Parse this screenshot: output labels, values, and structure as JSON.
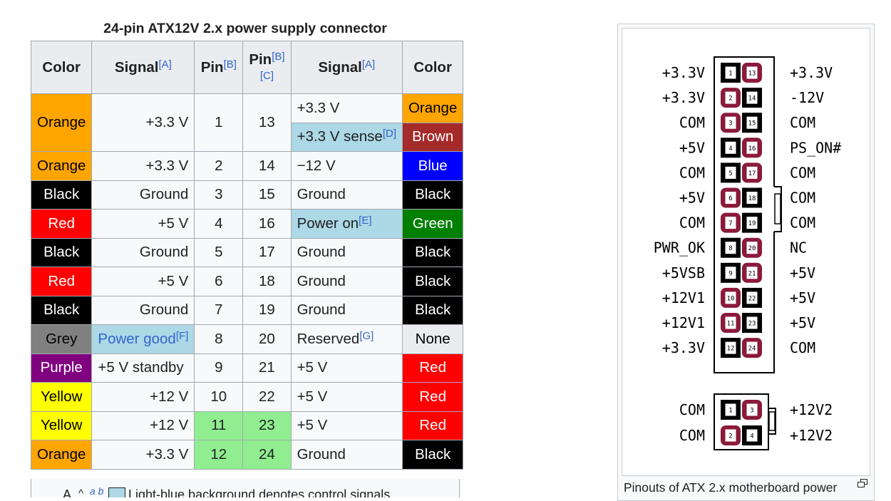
{
  "caption": "24-pin ATX12V 2.x power supply connector",
  "headers": {
    "color": "Color",
    "signal": "Signal",
    "pin": "Pin",
    "ref_a": "[A]",
    "ref_b": "[B]",
    "ref_c": "[C]"
  },
  "rows": [
    {
      "lcolor": "Orange",
      "lsig": "+3.3 V",
      "lpin": "1",
      "rpin": "13",
      "rsig": "+3.3 V",
      "rcolor": "Orange",
      "rsig2": "+3.3 V sense",
      "rsig2_ref": "[D]",
      "rcolor2": "Brown"
    },
    {
      "lcolor": "Orange",
      "lsig": "+3.3 V",
      "lpin": "2",
      "rpin": "14",
      "rsig": "−12 V",
      "rcolor": "Blue"
    },
    {
      "lcolor": "Black",
      "lsig": "Ground",
      "lpin": "3",
      "rpin": "15",
      "rsig": "Ground",
      "rcolor": "Black"
    },
    {
      "lcolor": "Red",
      "lsig": "+5 V",
      "lpin": "4",
      "rpin": "16",
      "rsig": "Power on",
      "rsig_ref": "[E]",
      "rcolor": "Green"
    },
    {
      "lcolor": "Black",
      "lsig": "Ground",
      "lpin": "5",
      "rpin": "17",
      "rsig": "Ground",
      "rcolor": "Black"
    },
    {
      "lcolor": "Red",
      "lsig": "+5 V",
      "lpin": "6",
      "rpin": "18",
      "rsig": "Ground",
      "rcolor": "Black"
    },
    {
      "lcolor": "Black",
      "lsig": "Ground",
      "lpin": "7",
      "rpin": "19",
      "rsig": "Ground",
      "rcolor": "Black"
    },
    {
      "lcolor": "Grey",
      "lsig": "Power good",
      "lsig_ref": "[F]",
      "lpin": "8",
      "rpin": "20",
      "rsig": "Reserved",
      "rsig_ref": "[G]",
      "rcolor": "None"
    },
    {
      "lcolor": "Purple",
      "lsig": "+5 V standby",
      "lpin": "9",
      "rpin": "21",
      "rsig": "+5 V",
      "rcolor": "Red"
    },
    {
      "lcolor": "Yellow",
      "lsig": "+12 V",
      "lpin": "10",
      "rpin": "22",
      "rsig": "+5 V",
      "rcolor": "Red"
    },
    {
      "lcolor": "Yellow",
      "lsig": "+12 V",
      "lpin": "11",
      "rpin": "23",
      "rsig": "+5 V",
      "rcolor": "Red"
    },
    {
      "lcolor": "Orange",
      "lsig": "+3.3 V",
      "lpin": "12",
      "rpin": "24",
      "rsig": "Ground",
      "rcolor": "Black"
    }
  ],
  "footnote": {
    "letter": "A",
    "caret": "^",
    "backlinks": "a b",
    "text": "Light-blue background denotes control signals."
  },
  "colors": {
    "Orange": "#ffa500",
    "Brown": "#a52a2a",
    "Blue": "#0000ff",
    "Black": "#000000",
    "Red": "#ff0000",
    "Green": "#008000",
    "Grey": "#808080",
    "Purple": "#800080",
    "Yellow": "#ffff00",
    "None": "#eaecf0",
    "control_bg": "#add8e6",
    "highlight_bg": "#90ee90"
  },
  "diagram": {
    "left_labels": [
      "+3.3V",
      "+3.3V",
      "COM",
      "+5V",
      "COM",
      "+5V",
      "COM",
      "PWR_OK",
      "+5VSB",
      "+12V1",
      "+12V1",
      "+3.3V"
    ],
    "right_labels": [
      "+3.3V",
      "-12V",
      "COM",
      "PS_ON#",
      "COM",
      "COM",
      "COM",
      "NC",
      "+5V",
      "+5V",
      "+5V",
      "COM"
    ],
    "left_pins": [
      "1",
      "2",
      "3",
      "4",
      "5",
      "6",
      "7",
      "8",
      "9",
      "10",
      "11",
      "12"
    ],
    "right_pins": [
      "13",
      "14",
      "15",
      "16",
      "17",
      "18",
      "19",
      "20",
      "21",
      "22",
      "23",
      "24"
    ],
    "left_shapes": [
      "square",
      "rounded",
      "rounded",
      "square",
      "square",
      "rounded",
      "rounded",
      "square",
      "square",
      "rounded",
      "rounded",
      "square"
    ],
    "right_shapes": [
      "rounded",
      "square",
      "square",
      "rounded",
      "rounded",
      "square",
      "square",
      "rounded",
      "rounded",
      "square",
      "square",
      "rounded"
    ],
    "small_left_labels": [
      "COM",
      "COM"
    ],
    "small_right_labels": [
      "+12V2",
      "+12V2"
    ],
    "small_left_pins": [
      "1",
      "2"
    ],
    "small_right_pins": [
      "3",
      "4"
    ],
    "small_left_shapes": [
      "square",
      "rounded"
    ],
    "small_right_shapes": [
      "rounded",
      "square"
    ],
    "pin_colors": {
      "rounded": "#8b1a3a",
      "square": "#000000"
    },
    "caption": "Pinouts of ATX 2.x motherboard power"
  }
}
